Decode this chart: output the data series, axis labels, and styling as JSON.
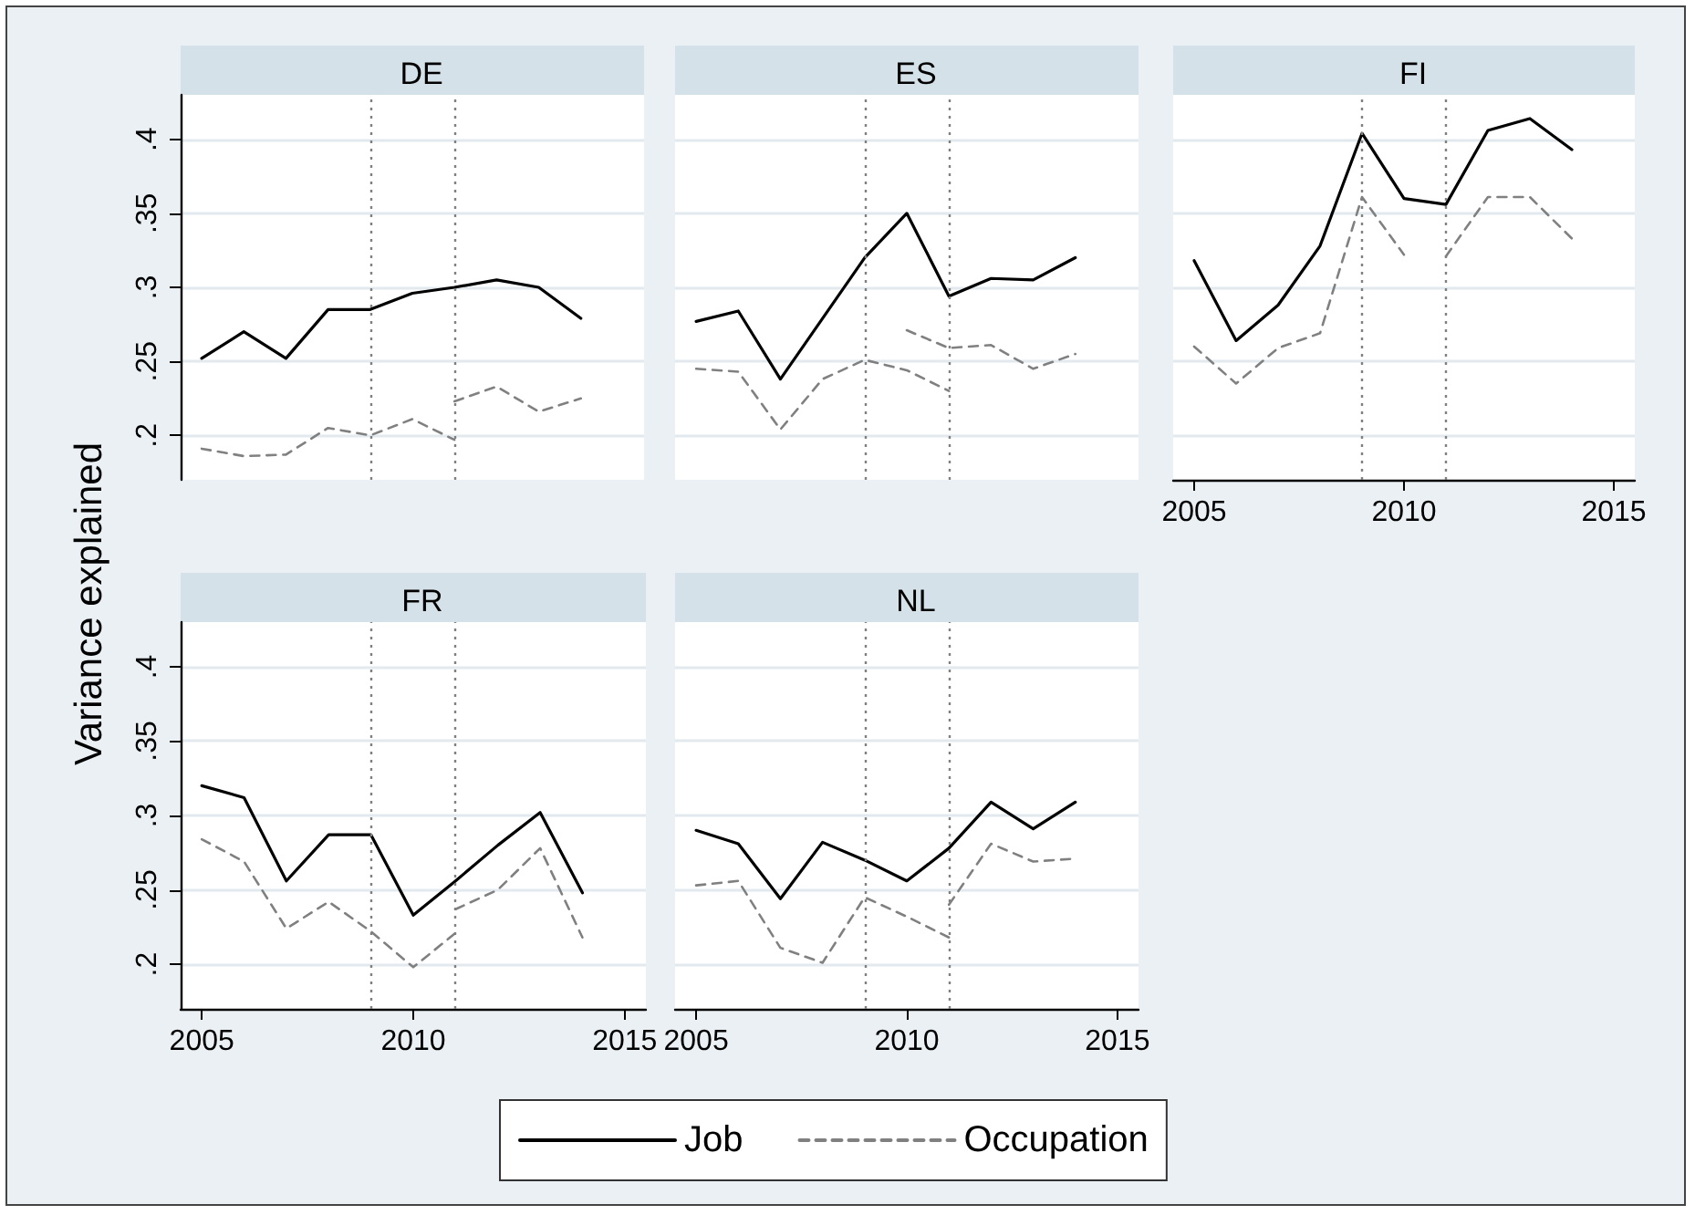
{
  "chart_data": [
    {
      "type": "line",
      "title": "DE",
      "x": [
        2005,
        2006,
        2007,
        2008,
        2009,
        2010,
        2011,
        2012,
        2013,
        2014
      ],
      "xlim": [
        2004.5,
        2015.5
      ],
      "xticks": [
        2005,
        2010,
        2015
      ],
      "ylim": [
        0.17,
        0.43
      ],
      "yticks": [
        {
          "value": 0.2,
          "label": ".2"
        },
        {
          "value": 0.25,
          "label": ".25"
        },
        {
          "value": 0.3,
          "label": ".3"
        },
        {
          "value": 0.35,
          "label": ".35"
        },
        {
          "value": 0.4,
          "label": ".4"
        }
      ],
      "grid": "y",
      "tick_labels": "y",
      "series": [
        {
          "color": "#000000",
          "line_style": "solid",
          "values": [
            0.252,
            0.27,
            0.252,
            0.285,
            0.285,
            0.296,
            0.3,
            0.305,
            0.3,
            0.279
          ]
        },
        {
          "color": "#808080",
          "line_style": "dashed",
          "x": [
            2005,
            2006,
            2007,
            2008,
            2009,
            2010,
            2011
          ],
          "values": [
            0.191,
            0.186,
            0.187,
            0.205,
            0.2,
            0.211,
            0.197
          ]
        },
        {
          "color": "#808080",
          "line_style": "dashed",
          "x": [
            2011,
            2012,
            2013,
            2014
          ],
          "values": [
            0.223,
            0.233,
            0.216,
            0.225
          ]
        }
      ],
      "ref_lines": [
        {
          "axis": "x",
          "value": 2009,
          "color": "#808080",
          "line_style": "dotted"
        },
        {
          "axis": "x",
          "value": 2011,
          "color": "#808080",
          "line_style": "dotted"
        }
      ]
    },
    {
      "type": "line",
      "title": "ES",
      "x": [
        2005,
        2006,
        2007,
        2008,
        2009,
        2010,
        2011,
        2012,
        2013,
        2014
      ],
      "xlim": [
        2004.5,
        2015.5
      ],
      "xticks": [
        2005,
        2010,
        2015
      ],
      "ylim": [
        0.17,
        0.43
      ],
      "yticks": [
        0.2,
        0.25,
        0.3,
        0.35,
        0.4
      ],
      "grid": "y",
      "tick_labels": false,
      "series": [
        {
          "color": "#000000",
          "line_style": "solid",
          "values": [
            0.277,
            0.284,
            0.238,
            0.279,
            0.32,
            0.35,
            0.294,
            0.306,
            0.305,
            0.32
          ]
        },
        {
          "color": "#808080",
          "line_style": "dashed",
          "x": [
            2005,
            2006,
            2007,
            2008,
            2009,
            2010,
            2011
          ],
          "values": [
            0.245,
            0.243,
            0.204,
            0.238,
            0.251,
            0.244,
            0.23
          ]
        },
        {
          "color": "#808080",
          "line_style": "dashed",
          "x": [
            2010,
            2011,
            2012,
            2013,
            2014
          ],
          "values": [
            0.271,
            0.259,
            0.261,
            0.245,
            0.255
          ]
        }
      ],
      "ref_lines": [
        {
          "axis": "x",
          "value": 2009,
          "color": "#808080",
          "line_style": "dotted"
        },
        {
          "axis": "x",
          "value": 2011,
          "color": "#808080",
          "line_style": "dotted"
        }
      ]
    },
    {
      "type": "line",
      "title": "FI",
      "x": [
        2005,
        2006,
        2007,
        2008,
        2009,
        2010,
        2011,
        2012,
        2013,
        2014
      ],
      "xlim": [
        2004.5,
        2015.5
      ],
      "xticks": [
        2005,
        2010,
        2015
      ],
      "ylim": [
        0.17,
        0.43
      ],
      "yticks": [
        0.2,
        0.25,
        0.3,
        0.35,
        0.4
      ],
      "grid": "y",
      "tick_labels": "x",
      "series": [
        {
          "color": "#000000",
          "line_style": "solid",
          "values": [
            0.318,
            0.264,
            0.288,
            0.328,
            0.404,
            0.36,
            0.356,
            0.406,
            0.414,
            0.393
          ]
        },
        {
          "color": "#808080",
          "line_style": "dashed",
          "x": [
            2005,
            2006,
            2007,
            2008,
            2009,
            2010
          ],
          "values": [
            0.26,
            0.235,
            0.259,
            0.269,
            0.361,
            0.322
          ]
        },
        {
          "color": "#808080",
          "line_style": "dashed",
          "x": [
            2011,
            2012,
            2013,
            2014
          ],
          "values": [
            0.321,
            0.361,
            0.361,
            0.333
          ]
        }
      ],
      "ref_lines": [
        {
          "axis": "x",
          "value": 2009,
          "color": "#808080",
          "line_style": "dotted"
        },
        {
          "axis": "x",
          "value": 2011,
          "color": "#808080",
          "line_style": "dotted"
        }
      ]
    },
    {
      "type": "line",
      "title": "FR",
      "ylabel": "Variance explained",
      "x": [
        2005,
        2006,
        2007,
        2008,
        2009,
        2010,
        2011,
        2012,
        2013,
        2014
      ],
      "xlim": [
        2004.5,
        2015.5
      ],
      "xticks": [
        2005,
        2010,
        2015
      ],
      "ylim": [
        0.17,
        0.43
      ],
      "yticks": [
        {
          "value": 0.2,
          "label": ".2"
        },
        {
          "value": 0.25,
          "label": ".25"
        },
        {
          "value": 0.3,
          "label": ".3"
        },
        {
          "value": 0.35,
          "label": ".35"
        },
        {
          "value": 0.4,
          "label": ".4"
        }
      ],
      "grid": "y",
      "series": [
        {
          "color": "#000000",
          "line_style": "solid",
          "values": [
            0.32,
            0.312,
            0.256,
            0.287,
            0.287,
            0.233,
            0.256,
            0.28,
            0.302,
            0.248
          ]
        },
        {
          "color": "#808080",
          "line_style": "dashed",
          "x": [
            2005,
            2006,
            2007,
            2008,
            2009,
            2010,
            2011
          ],
          "values": [
            0.284,
            0.269,
            0.224,
            0.242,
            0.222,
            0.198,
            0.221
          ]
        },
        {
          "color": "#808080",
          "line_style": "dashed",
          "x": [
            2011,
            2012,
            2013,
            2014
          ],
          "values": [
            0.237,
            0.25,
            0.278,
            0.218
          ]
        }
      ],
      "ref_lines": [
        {
          "axis": "x",
          "value": 2009,
          "color": "#808080",
          "line_style": "dotted"
        },
        {
          "axis": "x",
          "value": 2011,
          "color": "#808080",
          "line_style": "dotted"
        }
      ]
    },
    {
      "type": "line",
      "title": "NL",
      "x": [
        2005,
        2006,
        2007,
        2008,
        2009,
        2010,
        2011,
        2012,
        2013,
        2014
      ],
      "xlim": [
        2004.5,
        2015.5
      ],
      "xticks": [
        2005,
        2010,
        2015
      ],
      "ylim": [
        0.17,
        0.43
      ],
      "yticks": [
        0.2,
        0.25,
        0.3,
        0.35,
        0.4
      ],
      "grid": "y",
      "tick_labels": "x",
      "legend": "bottom",
      "series": [
        {
          "name": "Job",
          "color": "#000000",
          "line_style": "solid",
          "values": [
            0.29,
            0.281,
            0.244,
            0.282,
            0.27,
            0.256,
            0.278,
            0.309,
            0.291,
            0.309
          ]
        },
        {
          "name": "Occupation",
          "color": "#808080",
          "line_style": "dashed",
          "x": [
            2005,
            2006,
            2007,
            2008,
            2009,
            2010,
            2011
          ],
          "values": [
            0.253,
            0.256,
            0.211,
            0.201,
            0.245,
            0.232,
            0.218
          ]
        },
        {
          "color": "#808080",
          "line_style": "dashed",
          "x": [
            2011,
            2012,
            2013,
            2014
          ],
          "values": [
            0.24,
            0.281,
            0.269,
            0.271
          ]
        }
      ],
      "ref_lines": [
        {
          "axis": "x",
          "value": 2009,
          "color": "#808080",
          "line_style": "dotted"
        },
        {
          "axis": "x",
          "value": 2011,
          "color": "#808080",
          "line_style": "dotted"
        }
      ]
    }
  ]
}
